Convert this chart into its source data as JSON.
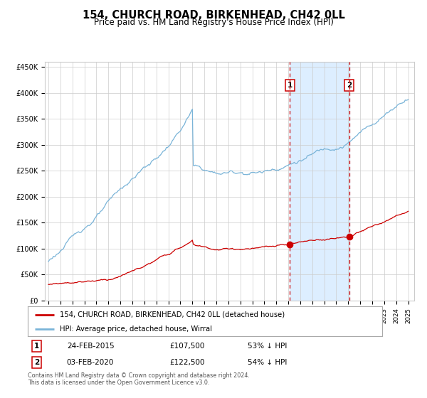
{
  "title": "154, CHURCH ROAD, BIRKENHEAD, CH42 0LL",
  "subtitle": "Price paid vs. HM Land Registry's House Price Index (HPI)",
  "title_fontsize": 10.5,
  "subtitle_fontsize": 8.5,
  "ylabel_ticks": [
    "£0",
    "£50K",
    "£100K",
    "£150K",
    "£200K",
    "£250K",
    "£300K",
    "£350K",
    "£400K",
    "£450K"
  ],
  "ylabel_values": [
    0,
    50000,
    100000,
    150000,
    200000,
    250000,
    300000,
    350000,
    400000,
    450000
  ],
  "ylim": [
    0,
    460000
  ],
  "xlim_start": 1994.7,
  "xlim_end": 2025.5,
  "event1_x": 2015.12,
  "event1_y": 107500,
  "event2_x": 2020.08,
  "event2_y": 122500,
  "event1_date": "24-FEB-2015",
  "event1_price": "£107,500",
  "event1_pct": "53% ↓ HPI",
  "event2_date": "03-FEB-2020",
  "event2_price": "£122,500",
  "event2_pct": "54% ↓ HPI",
  "hpi_color": "#7ab4d8",
  "sale_color": "#cc0000",
  "vline_color": "#cc0000",
  "shade_color": "#ddeeff",
  "grid_color": "#cccccc",
  "bg_color": "#ffffff",
  "legend_label1": "154, CHURCH ROAD, BIRKENHEAD, CH42 0LL (detached house)",
  "legend_label2": "HPI: Average price, detached house, Wirral",
  "footer1": "Contains HM Land Registry data © Crown copyright and database right 2024.",
  "footer2": "This data is licensed under the Open Government Licence v3.0."
}
